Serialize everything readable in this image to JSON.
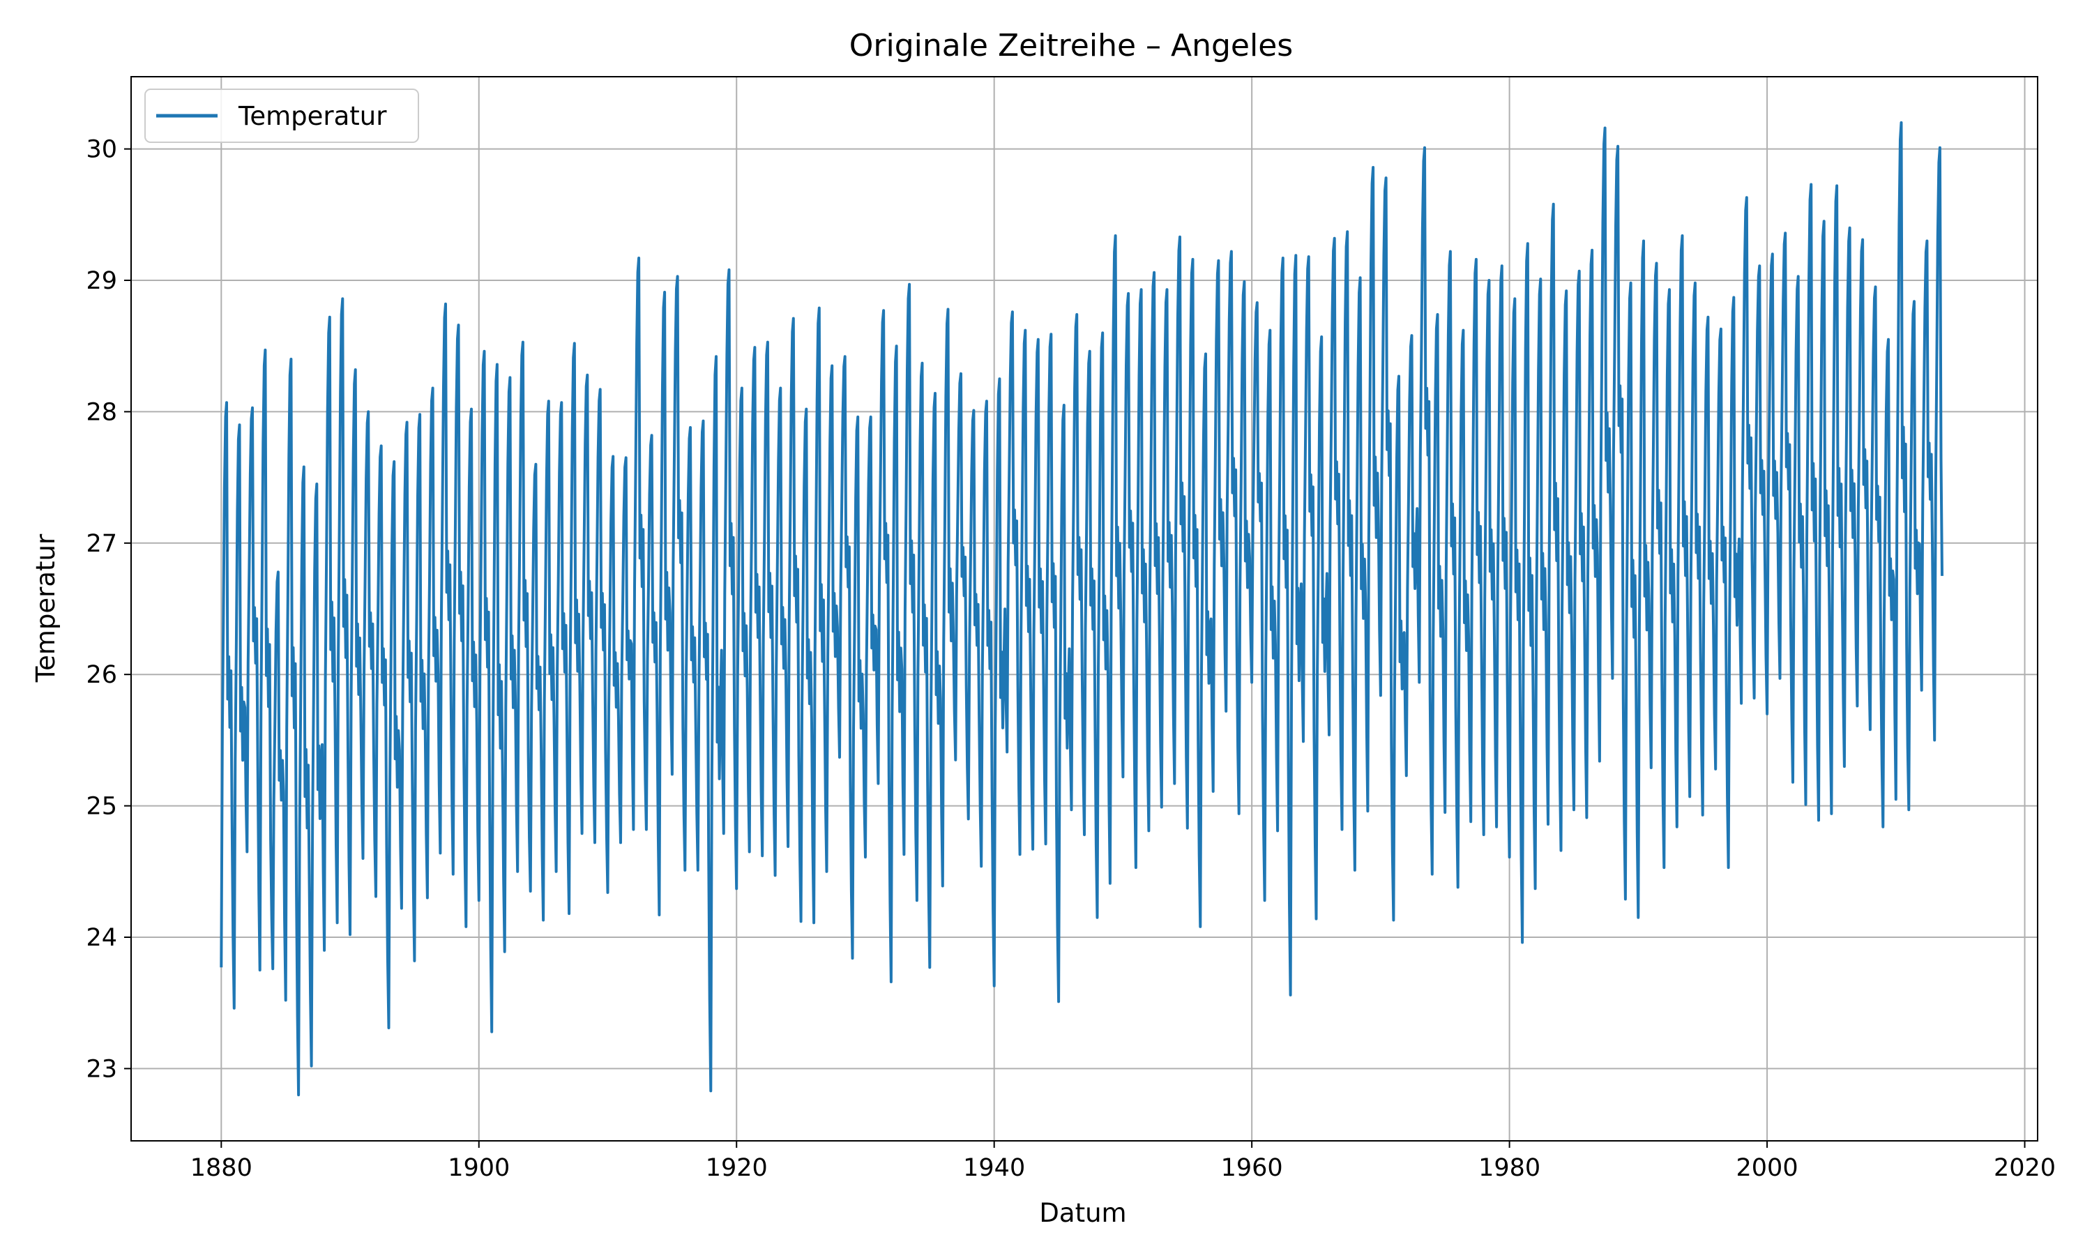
{
  "chart_data": {
    "type": "line",
    "title": "Originale Zeitreihe – Angeles",
    "xlabel": "Datum",
    "ylabel": "Temperatur",
    "xlim": [
      1873,
      2021
    ],
    "ylim": [
      22.45,
      30.55
    ],
    "x_ticks": [
      1880,
      1900,
      1920,
      1940,
      1960,
      1980,
      2000,
      2020
    ],
    "x_tick_labels": [
      "1880",
      "1900",
      "1920",
      "1940",
      "1960",
      "1980",
      "2000",
      "2020"
    ],
    "y_ticks": [
      23,
      24,
      25,
      26,
      27,
      28,
      29,
      30
    ],
    "y_tick_labels": [
      "23",
      "24",
      "25",
      "26",
      "27",
      "28",
      "29",
      "30"
    ],
    "grid": true,
    "legend_position": "top-left",
    "series": [
      {
        "name": "Temperatur",
        "color": "#1f77b4",
        "x_start": "1880-01",
        "x_end": "2013-08",
        "frequency": "monthly",
        "annual_peaks": [
          28.07,
          27.9,
          28.03,
          28.47,
          26.78,
          28.4,
          27.58,
          27.45,
          28.72,
          28.86,
          28.32,
          28.0,
          27.74,
          27.62,
          27.92,
          27.98,
          28.18,
          28.82,
          28.66,
          28.02,
          28.46,
          28.36,
          28.26,
          28.53,
          27.6,
          28.08,
          28.07,
          28.52,
          28.28,
          28.17,
          27.66,
          27.65,
          29.17,
          27.82,
          28.91,
          29.03,
          27.88,
          27.93,
          28.42,
          29.08,
          28.18,
          28.49,
          28.53,
          28.18,
          28.71,
          28.02,
          28.79,
          28.35,
          28.42,
          27.96,
          27.96,
          28.77,
          28.5,
          28.97,
          28.37,
          28.14,
          28.78,
          28.29,
          28.01,
          28.08,
          28.25,
          28.76,
          28.62,
          28.55,
          28.59,
          28.05,
          28.74,
          28.46,
          28.6,
          29.34,
          28.9,
          28.93,
          29.06,
          28.93,
          29.33,
          29.16,
          28.44,
          29.15,
          29.22,
          28.99,
          28.83,
          28.62,
          29.17,
          29.19,
          29.18,
          28.57,
          29.32,
          29.37,
          29.02,
          29.86,
          29.78,
          28.27,
          28.58,
          30.01,
          28.74,
          29.22,
          28.62,
          29.16,
          29.0,
          29.11,
          28.86,
          29.28,
          29.01,
          29.58,
          28.92,
          29.07,
          29.23,
          30.16,
          30.02,
          28.98,
          29.3,
          29.13,
          28.93,
          29.34,
          28.98,
          28.72,
          28.63,
          28.87,
          29.63,
          29.11,
          29.2,
          29.36,
          29.03,
          29.73,
          29.45,
          29.72,
          29.4,
          29.31,
          28.95,
          28.55,
          30.2,
          28.84,
          29.3,
          30.01
        ],
        "annual_troughs": [
          23.77,
          23.46,
          24.65,
          23.75,
          23.76,
          23.52,
          22.8,
          23.02,
          23.9,
          24.11,
          24.02,
          24.6,
          24.31,
          23.31,
          24.22,
          23.82,
          24.3,
          24.64,
          24.48,
          24.08,
          24.28,
          23.28,
          23.89,
          24.5,
          24.35,
          24.13,
          24.5,
          24.18,
          24.79,
          24.72,
          24.34,
          24.72,
          24.82,
          24.82,
          24.17,
          25.24,
          24.51,
          24.51,
          22.83,
          24.79,
          24.37,
          24.65,
          24.62,
          24.47,
          24.69,
          24.12,
          24.11,
          24.5,
          25.37,
          23.84,
          24.61,
          25.17,
          23.66,
          24.63,
          24.28,
          23.77,
          24.39,
          25.35,
          24.9,
          24.54,
          23.63,
          25.41,
          24.63,
          24.67,
          24.71,
          23.51,
          24.97,
          24.78,
          24.15,
          24.41,
          25.22,
          24.53,
          24.81,
          24.99,
          25.17,
          24.83,
          24.08,
          25.11,
          25.72,
          24.94,
          25.94,
          24.28,
          24.81,
          23.56,
          25.49,
          24.14,
          25.54,
          24.82,
          24.51,
          24.96,
          25.84,
          24.13,
          25.23,
          25.94,
          24.48,
          24.95,
          24.38,
          24.88,
          24.78,
          24.84,
          24.61,
          23.96,
          24.37,
          24.86,
          24.66,
          24.97,
          24.91,
          25.34,
          25.97,
          24.29,
          24.15,
          25.29,
          24.53,
          24.84,
          25.07,
          24.93,
          25.28,
          24.53,
          25.78,
          25.82,
          25.7,
          25.97,
          25.18,
          25.01,
          24.89,
          24.94,
          25.3,
          25.76,
          25.58,
          24.84,
          25.05,
          24.97,
          25.88,
          25.5
        ],
        "last_value": 26.75,
        "peak_month": 6,
        "trough_month": 1
      }
    ]
  }
}
